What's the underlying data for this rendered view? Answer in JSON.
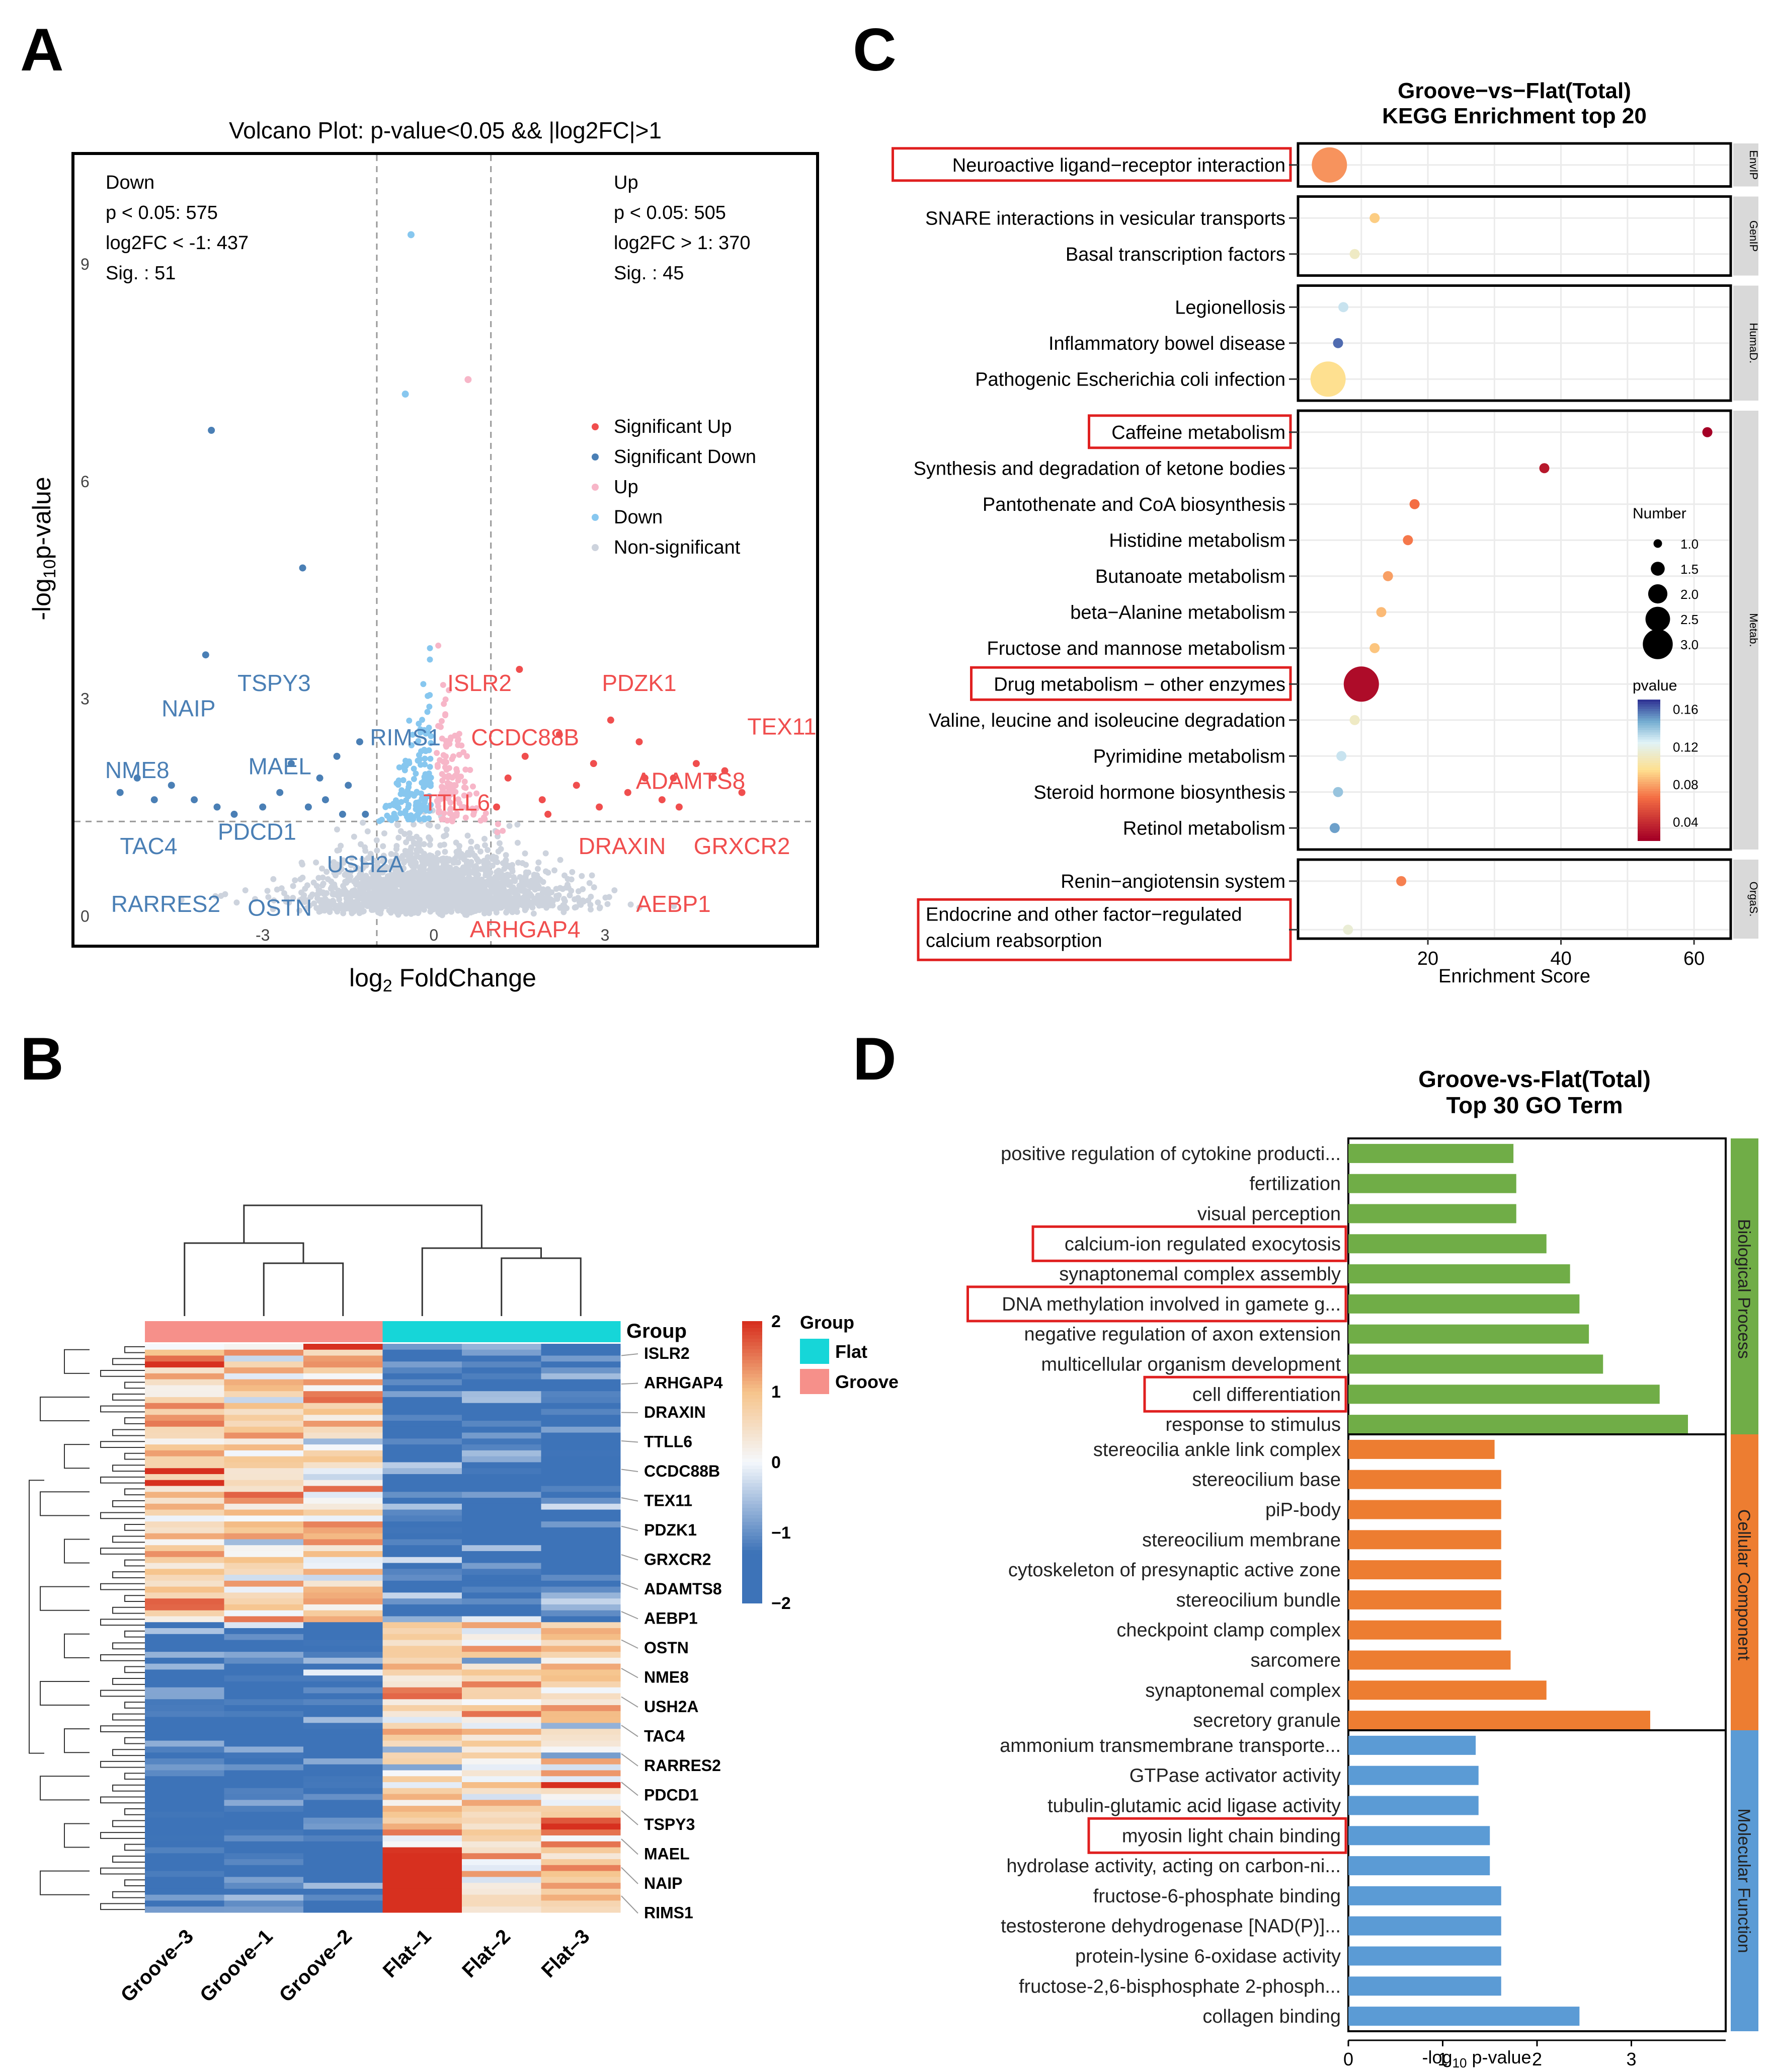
{
  "chart_data": [
    {
      "panel": "A",
      "type": "scatter",
      "title": "Volcano Plot: p-value<0.05 && |log2FC|>1",
      "xlabel_main": "log",
      "xlabel_sub": "2",
      "xlabel_rest": " FoldChange",
      "ylabel_pre": "-log",
      "ylabel_sub": "10",
      "ylabel_rest": "p-value",
      "xlim": [
        -6.3,
        6.7
      ],
      "ylim": [
        -0.4,
        10.5
      ],
      "x_ticks": [
        {
          "value": -3,
          "label": "-3"
        },
        {
          "value": 0,
          "label": "0"
        },
        {
          "value": 3,
          "label": "3"
        }
      ],
      "y_ticks": [
        {
          "value": 0,
          "label": "0"
        },
        {
          "value": 3,
          "label": "3"
        },
        {
          "value": 6,
          "label": "6"
        },
        {
          "value": 9,
          "label": "9"
        }
      ],
      "thresholds": {
        "fc": 1,
        "p_line": 1.3
      },
      "down_stats": [
        "Down",
        "p < 0.05: 575",
        "log2FC < -1: 437",
        "Sig. : 51"
      ],
      "up_stats": [
        "Up",
        "p < 0.05: 505",
        "log2FC > 1: 370",
        "Sig. : 45"
      ],
      "legend": [
        {
          "label": "Significant Up",
          "color": "#f04e4e"
        },
        {
          "label": "Significant Down",
          "color": "#4a7fb5"
        },
        {
          "label": "Up",
          "color": "#f7b6c8"
        },
        {
          "label": "Down",
          "color": "#87c7ef"
        },
        {
          "label": "Non-significant",
          "color": "#cdd3dd"
        }
      ],
      "points": [
        {
          "x": -0.4,
          "y": 9.4,
          "g": "down"
        },
        {
          "x": -0.5,
          "y": 7.2,
          "g": "down"
        },
        {
          "x": 0.6,
          "y": 7.4,
          "g": "up"
        },
        {
          "x": -3.9,
          "y": 6.7,
          "g": "sigdown"
        },
        {
          "x": -2.3,
          "y": 4.8,
          "g": "sigdown"
        },
        {
          "x": -4.0,
          "y": 3.6,
          "g": "sigdown"
        },
        {
          "x": -5.5,
          "y": 1.7,
          "g": "sigdown"
        },
        {
          "x": -5.2,
          "y": 1.9,
          "g": "sigdown"
        },
        {
          "x": -4.9,
          "y": 1.6,
          "g": "sigdown"
        },
        {
          "x": -4.6,
          "y": 1.8,
          "g": "sigdown"
        },
        {
          "x": -4.2,
          "y": 1.6,
          "g": "sigdown"
        },
        {
          "x": -3.8,
          "y": 1.5,
          "g": "sigdown"
        },
        {
          "x": -3.5,
          "y": 1.4,
          "g": "sigdown"
        },
        {
          "x": -3.0,
          "y": 1.5,
          "g": "sigdown"
        },
        {
          "x": -2.7,
          "y": 1.7,
          "g": "sigdown"
        },
        {
          "x": -2.5,
          "y": 2.1,
          "g": "sigdown"
        },
        {
          "x": -2.2,
          "y": 1.5,
          "g": "sigdown"
        },
        {
          "x": -1.9,
          "y": 1.6,
          "g": "sigdown"
        },
        {
          "x": -1.7,
          "y": 2.2,
          "g": "sigdown"
        },
        {
          "x": -1.5,
          "y": 1.8,
          "g": "sigdown"
        },
        {
          "x": -1.3,
          "y": 2.4,
          "g": "sigdown"
        },
        {
          "x": -1.2,
          "y": 1.4,
          "g": "sigdown"
        },
        {
          "x": -1.6,
          "y": 1.4,
          "g": "sigdown"
        },
        {
          "x": -2.0,
          "y": 1.9,
          "g": "sigdown"
        },
        {
          "x": 1.3,
          "y": 1.9,
          "g": "sigup"
        },
        {
          "x": 1.6,
          "y": 2.2,
          "g": "sigup"
        },
        {
          "x": 1.9,
          "y": 1.6,
          "g": "sigup"
        },
        {
          "x": 2.2,
          "y": 2.5,
          "g": "sigup"
        },
        {
          "x": 2.5,
          "y": 1.8,
          "g": "sigup"
        },
        {
          "x": 2.8,
          "y": 2.1,
          "g": "sigup"
        },
        {
          "x": 3.1,
          "y": 2.7,
          "g": "sigup"
        },
        {
          "x": 3.4,
          "y": 1.7,
          "g": "sigup"
        },
        {
          "x": 3.7,
          "y": 1.9,
          "g": "sigup"
        },
        {
          "x": 4.0,
          "y": 1.6,
          "g": "sigup"
        },
        {
          "x": 4.3,
          "y": 1.5,
          "g": "sigup"
        },
        {
          "x": 4.6,
          "y": 2.1,
          "g": "sigup"
        },
        {
          "x": 4.9,
          "y": 1.9,
          "g": "sigup"
        },
        {
          "x": 5.1,
          "y": 2.0,
          "g": "sigup"
        },
        {
          "x": 5.4,
          "y": 1.7,
          "g": "sigup"
        },
        {
          "x": 1.5,
          "y": 3.4,
          "g": "sigup"
        },
        {
          "x": 2.0,
          "y": 1.4,
          "g": "sigup"
        },
        {
          "x": 2.9,
          "y": 1.5,
          "g": "sigup"
        },
        {
          "x": 3.6,
          "y": 2.4,
          "g": "sigup"
        },
        {
          "x": 4.2,
          "y": 1.9,
          "g": "sigup"
        },
        {
          "x": 1.1,
          "y": 1.5,
          "g": "sigup"
        }
      ],
      "gene_labels": [
        {
          "text": "NAIP",
          "x": -4.3,
          "y": 2.75,
          "side": "down"
        },
        {
          "text": "TSPY3",
          "x": -2.8,
          "y": 3.1,
          "side": "down"
        },
        {
          "text": "NME8",
          "x": -5.2,
          "y": 1.9,
          "side": "down"
        },
        {
          "text": "MAEL",
          "x": -2.7,
          "y": 1.95,
          "side": "down"
        },
        {
          "text": "PDCD1",
          "x": -3.1,
          "y": 1.05,
          "side": "down"
        },
        {
          "text": "RIMS1",
          "x": -0.5,
          "y": 2.35,
          "side": "down"
        },
        {
          "text": "TAC4",
          "x": -5.0,
          "y": 0.85,
          "side": "down"
        },
        {
          "text": "USH2A",
          "x": -1.2,
          "y": 0.6,
          "side": "down"
        },
        {
          "text": "RARRES2",
          "x": -4.7,
          "y": 0.05,
          "side": "down"
        },
        {
          "text": "OSTN",
          "x": -2.7,
          "y": 0.0,
          "side": "down"
        },
        {
          "text": "ISLR2",
          "x": 0.8,
          "y": 3.1,
          "side": "up"
        },
        {
          "text": "PDZK1",
          "x": 3.6,
          "y": 3.1,
          "side": "up"
        },
        {
          "text": "TEX11",
          "x": 6.1,
          "y": 2.5,
          "side": "up"
        },
        {
          "text": "CCDC88B",
          "x": 1.6,
          "y": 2.35,
          "side": "up"
        },
        {
          "text": "ADAMTS8",
          "x": 4.5,
          "y": 1.75,
          "side": "up"
        },
        {
          "text": "TTLL6",
          "x": 0.4,
          "y": 1.45,
          "side": "up"
        },
        {
          "text": "DRAXIN",
          "x": 3.3,
          "y": 0.85,
          "side": "up"
        },
        {
          "text": "GRXCR2",
          "x": 5.4,
          "y": 0.85,
          "side": "up"
        },
        {
          "text": "AEBP1",
          "x": 4.2,
          "y": 0.05,
          "side": "up"
        },
        {
          "text": "ARHGAP4",
          "x": 1.6,
          "y": -0.3,
          "side": "up"
        }
      ]
    },
    {
      "panel": "B",
      "type": "heatmap",
      "columns": [
        "Groove–3",
        "Groove–1",
        "Groove–2",
        "Flat–1",
        "Flat–2",
        "Flat–3"
      ],
      "column_groups": [
        "Groove",
        "Groove",
        "Groove",
        "Flat",
        "Flat",
        "Flat"
      ],
      "row_count": 96,
      "row_labels": [
        "ISLR2",
        "ARHGAP4",
        "DRAXIN",
        "TTLL6",
        "CCDC88B",
        "TEX11",
        "PDZK1",
        "GRXCR2",
        "ADAMTS8",
        "AEBP1",
        "OSTN",
        "NME8",
        "USH2A",
        "TAC4",
        "RARRES2",
        "PDCD1",
        "TSPY3",
        "MAEL",
        "NAIP",
        "RIMS1"
      ],
      "group_track_title": "Group",
      "legend_title": "Group",
      "legend_groups": [
        {
          "label": "Flat",
          "color": "#16d6d8"
        },
        {
          "label": "Groove",
          "color": "#f6908a"
        }
      ],
      "color_scale": {
        "ticks": [
          2,
          1,
          0,
          -1,
          -2
        ],
        "tick_labels": [
          "2",
          "1",
          "0",
          "−1",
          "−2"
        ],
        "high": "#d7301f",
        "mid": "#f5f8fc",
        "low": "#3d73b8"
      }
    },
    {
      "panel": "C",
      "type": "scatter",
      "title_line1": "Groove−vs−Flat(Total)",
      "title_line2": "KEGG Enrichment top 20",
      "xlabel": "Enrichment Score",
      "xlim": [
        2,
        64
      ],
      "x_ticks": [
        20,
        40,
        60
      ],
      "categories": [
        {
          "name": "EnvIP",
          "terms": [
            {
              "term": "Neuroactive ligand−receptor interaction",
              "score": 5.2,
              "pvalue": 0.075,
              "number": 3,
              "boxed": true
            }
          ]
        },
        {
          "name": "GenIP",
          "terms": [
            {
              "term": "SNARE interactions in vesicular transports",
              "score": 12.0,
              "pvalue": 0.09,
              "number": 1,
              "boxed": false
            },
            {
              "term": "Basal transcription factors",
              "score": 9.0,
              "pvalue": 0.11,
              "number": 1,
              "boxed": false
            }
          ]
        },
        {
          "name": "HumaD.",
          "terms": [
            {
              "term": "Legionellosis",
              "score": 7.3,
              "pvalue": 0.13,
              "number": 1,
              "boxed": false
            },
            {
              "term": "Inflammatory bowel disease",
              "score": 6.5,
              "pvalue": 0.16,
              "number": 1,
              "boxed": false
            },
            {
              "term": "Pathogenic Escherichia coli infection",
              "score": 5.0,
              "pvalue": 0.095,
              "number": 3,
              "boxed": false
            }
          ]
        },
        {
          "name": "Metab.",
          "terms": [
            {
              "term": "Caffeine metabolism",
              "score": 62.0,
              "pvalue": 0.02,
              "number": 1,
              "boxed": true
            },
            {
              "term": "Synthesis and degradation of ketone bodies",
              "score": 37.5,
              "pvalue": 0.03,
              "number": 1,
              "boxed": false
            },
            {
              "term": "Pantothenate and CoA biosynthesis",
              "score": 18.0,
              "pvalue": 0.065,
              "number": 1,
              "boxed": false
            },
            {
              "term": "Histidine metabolism",
              "score": 17.0,
              "pvalue": 0.068,
              "number": 1,
              "boxed": false
            },
            {
              "term": "Butanoate metabolism",
              "score": 14.0,
              "pvalue": 0.078,
              "number": 1,
              "boxed": false
            },
            {
              "term": "beta−Alanine metabolism",
              "score": 13.0,
              "pvalue": 0.085,
              "number": 1,
              "boxed": false
            },
            {
              "term": "Fructose and mannose metabolism",
              "score": 12.0,
              "pvalue": 0.088,
              "number": 1,
              "boxed": false
            },
            {
              "term": "Drug metabolism − other enzymes",
              "score": 10.0,
              "pvalue": 0.025,
              "number": 3,
              "boxed": true
            },
            {
              "term": "Valine, leucine and isoleucine degradation",
              "score": 9.0,
              "pvalue": 0.11,
              "number": 1,
              "boxed": false
            },
            {
              "term": "Pyrimidine metabolism",
              "score": 7.0,
              "pvalue": 0.13,
              "number": 1,
              "boxed": false
            },
            {
              "term": "Steroid hormone biosynthesis",
              "score": 6.5,
              "pvalue": 0.14,
              "number": 1,
              "boxed": false
            },
            {
              "term": "Retinol metabolism",
              "score": 6.0,
              "pvalue": 0.15,
              "number": 1,
              "boxed": false
            }
          ]
        },
        {
          "name": "OrgaS.",
          "terms": [
            {
              "term": "Renin−angiotensin system",
              "score": 16.0,
              "pvalue": 0.07,
              "number": 1,
              "boxed": false
            },
            {
              "term": "Endocrine and other factor−regulated calcium reabsorption",
              "score": 8.0,
              "pvalue": 0.115,
              "number": 1,
              "boxed": true,
              "lines": [
                "Endocrine and other factor−regulated",
                "calcium reabsorption"
              ]
            }
          ]
        }
      ],
      "number_legend": {
        "title": "Number",
        "values": [
          1.0,
          1.5,
          2.0,
          2.5,
          3.0
        ],
        "labels": [
          "1.0",
          "1.5",
          "2.0",
          "2.5",
          "3.0"
        ]
      },
      "pvalue_legend": {
        "title": "pvalue",
        "ticks": [
          0.16,
          0.12,
          0.08,
          0.04
        ],
        "labels": [
          "0.16",
          "0.12",
          "0.08",
          "0.04"
        ],
        "min": 0.02,
        "max": 0.17
      }
    },
    {
      "panel": "D",
      "type": "bar",
      "orientation": "horizontal",
      "title_line1": "Groove-vs-Flat(Total)",
      "title_line2": "Top 30 GO Term",
      "xlabel_pre": "-log",
      "xlabel_sub": "10",
      "xlabel_rest": " p-value",
      "xlim": [
        0,
        4
      ],
      "x_ticks": [
        0,
        1,
        2,
        3
      ],
      "groups": [
        {
          "name": "Biological Process",
          "color": "#70ad47",
          "terms": [
            {
              "term": "positive regulation of cytokine producti...",
              "value": 1.75,
              "boxed": false
            },
            {
              "term": "fertilization",
              "value": 1.78,
              "boxed": false
            },
            {
              "term": "visual perception",
              "value": 1.78,
              "boxed": false
            },
            {
              "term": "calcium-ion regulated exocytosis",
              "value": 2.1,
              "boxed": true
            },
            {
              "term": "synaptonemal complex assembly",
              "value": 2.35,
              "boxed": false
            },
            {
              "term": "DNA methylation involved in gamete g...",
              "value": 2.45,
              "boxed": true
            },
            {
              "term": "negative regulation of axon extension",
              "value": 2.55,
              "boxed": false
            },
            {
              "term": "multicellular organism development",
              "value": 2.7,
              "boxed": false
            },
            {
              "term": "cell differentiation",
              "value": 3.3,
              "boxed": true
            },
            {
              "term": "response to stimulus",
              "value": 3.6,
              "boxed": false
            }
          ]
        },
        {
          "name": "Cellular Component",
          "color": "#ed7d31",
          "terms": [
            {
              "term": "stereocilia ankle link complex",
              "value": 1.55,
              "boxed": false
            },
            {
              "term": "stereocilium base",
              "value": 1.62,
              "boxed": false
            },
            {
              "term": "piP-body",
              "value": 1.62,
              "boxed": false
            },
            {
              "term": "stereocilium membrane",
              "value": 1.62,
              "boxed": false
            },
            {
              "term": "cytoskeleton of presynaptic active zone",
              "value": 1.62,
              "boxed": false
            },
            {
              "term": "stereocilium bundle",
              "value": 1.62,
              "boxed": false
            },
            {
              "term": "checkpoint clamp complex",
              "value": 1.62,
              "boxed": false
            },
            {
              "term": "sarcomere",
              "value": 1.72,
              "boxed": false
            },
            {
              "term": "synaptonemal complex",
              "value": 2.1,
              "boxed": false
            },
            {
              "term": "secretory granule",
              "value": 3.2,
              "boxed": false
            }
          ]
        },
        {
          "name": "Molecular Function",
          "color": "#5b9bd5",
          "terms": [
            {
              "term": "ammonium transmembrane transporte...",
              "value": 1.35,
              "boxed": false
            },
            {
              "term": "GTPase activator activity",
              "value": 1.38,
              "boxed": false
            },
            {
              "term": "tubulin-glutamic acid ligase activity",
              "value": 1.38,
              "boxed": false
            },
            {
              "term": "myosin light chain binding",
              "value": 1.5,
              "boxed": true
            },
            {
              "term": "hydrolase activity, acting on carbon-ni...",
              "value": 1.5,
              "boxed": false
            },
            {
              "term": "fructose-6-phosphate binding",
              "value": 1.62,
              "boxed": false
            },
            {
              "term": "testosterone dehydrogenase [NAD(P)]...",
              "value": 1.62,
              "boxed": false
            },
            {
              "term": "protein-lysine 6-oxidase activity",
              "value": 1.62,
              "boxed": false
            },
            {
              "term": "fructose-2,6-bisphosphate 2-phosph...",
              "value": 1.62,
              "boxed": false
            },
            {
              "term": "collagen binding",
              "value": 2.45,
              "boxed": false
            }
          ]
        }
      ]
    }
  ],
  "panel_letters": {
    "a": "A",
    "b": "B",
    "c": "C",
    "d": "D"
  }
}
